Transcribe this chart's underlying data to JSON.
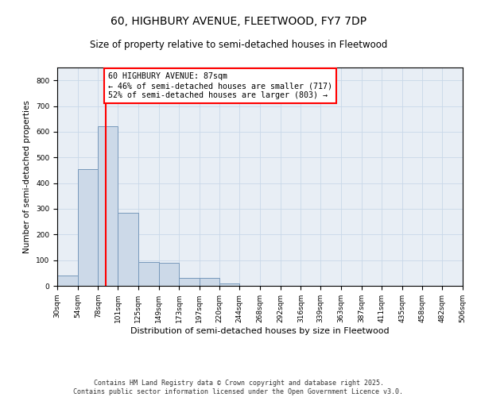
{
  "title": "60, HIGHBURY AVENUE, FLEETWOOD, FY7 7DP",
  "subtitle": "Size of property relative to semi-detached houses in Fleetwood",
  "xlabel": "Distribution of semi-detached houses by size in Fleetwood",
  "ylabel": "Number of semi-detached properties",
  "bar_color": "#ccd9e8",
  "bar_edge_color": "#7799bb",
  "grid_color": "#c8d8e8",
  "background_color": "#e8eef5",
  "vline_x": 87,
  "vline_color": "red",
  "annotation_text": "60 HIGHBURY AVENUE: 87sqm\n← 46% of semi-detached houses are smaller (717)\n52% of semi-detached houses are larger (803) →",
  "annotation_box_color": "white",
  "annotation_box_edge": "red",
  "bin_edges": [
    30,
    54,
    78,
    101,
    125,
    149,
    173,
    197,
    220,
    244,
    268,
    292,
    316,
    339,
    363,
    387,
    411,
    435,
    458,
    482,
    506
  ],
  "bar_heights": [
    40,
    455,
    620,
    285,
    92,
    90,
    30,
    30,
    8,
    0,
    0,
    0,
    0,
    0,
    0,
    0,
    0,
    0,
    0,
    0
  ],
  "ylim": [
    0,
    850
  ],
  "yticks": [
    0,
    100,
    200,
    300,
    400,
    500,
    600,
    700,
    800
  ],
  "footer_text": "Contains HM Land Registry data © Crown copyright and database right 2025.\nContains public sector information licensed under the Open Government Licence v3.0.",
  "tick_labels": [
    "30sqm",
    "54sqm",
    "78sqm",
    "101sqm",
    "125sqm",
    "149sqm",
    "173sqm",
    "197sqm",
    "220sqm",
    "244sqm",
    "268sqm",
    "292sqm",
    "316sqm",
    "339sqm",
    "363sqm",
    "387sqm",
    "411sqm",
    "435sqm",
    "458sqm",
    "482sqm",
    "506sqm"
  ],
  "title_fontsize": 10,
  "subtitle_fontsize": 8.5,
  "xlabel_fontsize": 8,
  "ylabel_fontsize": 7.5,
  "tick_fontsize": 6.5,
  "footer_fontsize": 6.0
}
